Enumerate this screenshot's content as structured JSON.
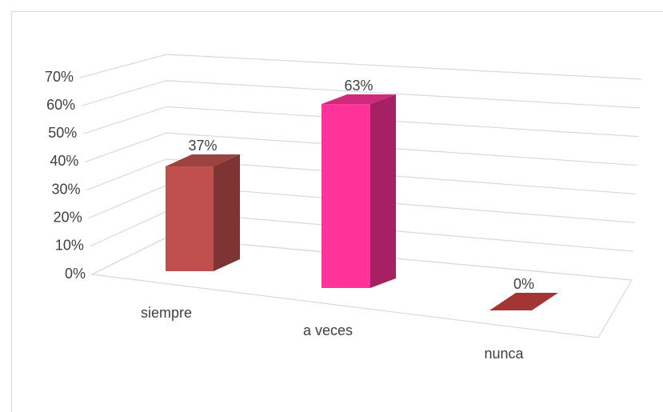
{
  "chart_data": {
    "type": "bar3d",
    "categories": [
      "siempre",
      "a veces",
      "nunca"
    ],
    "values": [
      37,
      63,
      0
    ],
    "value_labels": [
      "37%",
      "63%",
      "0%"
    ],
    "colors": [
      "#c0504d",
      "#ff3399",
      "#a33535"
    ],
    "ylim": [
      0,
      70
    ],
    "yticks": [
      {
        "value": 0,
        "label": "0%"
      },
      {
        "value": 10,
        "label": "10%"
      },
      {
        "value": 20,
        "label": "20%"
      },
      {
        "value": 30,
        "label": "30%"
      },
      {
        "value": 40,
        "label": "40%"
      },
      {
        "value": 50,
        "label": "50%"
      },
      {
        "value": 60,
        "label": "60%"
      },
      {
        "value": 70,
        "label": "70%"
      }
    ],
    "grid": true
  }
}
